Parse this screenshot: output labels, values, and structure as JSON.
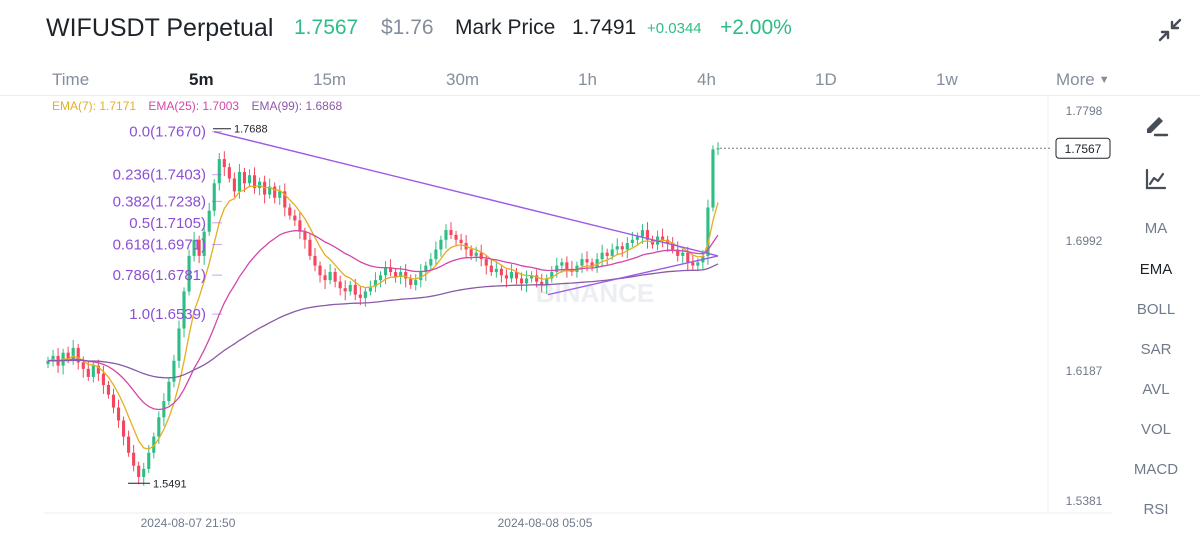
{
  "header": {
    "title": "WIFUSDT Perpetual",
    "last_price": "1.7567",
    "usd_price": "$1.76",
    "mark_price_label": "Mark Price",
    "mark_price": "1.7491",
    "change_abs": "+0.0344",
    "change_pct": "+2.00%",
    "collapse_icon": "collapse-arrows-icon"
  },
  "tabs": [
    {
      "label": "Time",
      "active": false
    },
    {
      "label": "5m",
      "active": true
    },
    {
      "label": "15m",
      "active": false
    },
    {
      "label": "30m",
      "active": false
    },
    {
      "label": "1h",
      "active": false
    },
    {
      "label": "4h",
      "active": false
    },
    {
      "label": "1D",
      "active": false
    },
    {
      "label": "1w",
      "active": false
    },
    {
      "label": "More",
      "active": false
    }
  ],
  "ema_legend": [
    {
      "label": "EMA(7): 1.7171",
      "color": "#e5ae21"
    },
    {
      "label": "EMA(25): 1.7003",
      "color": "#d447a8"
    },
    {
      "label": "EMA(99): 1.6868",
      "color": "#8a5aa8"
    }
  ],
  "colors": {
    "up": "#2ebd85",
    "down": "#f6465d",
    "fib": "#8d4fd6",
    "trendline": "#9b59e8"
  },
  "chart_data": {
    "type": "candlestick",
    "ylim": [
      1.5381,
      1.7798
    ],
    "y_ticks": [
      "1.7798",
      "1.6992",
      "1.6187",
      "1.5381"
    ],
    "x_labels": [
      "2024-08-07 21:50",
      "2024-08-08 05:05"
    ],
    "current_price": "1.7567",
    "high_label": "1.7688",
    "low_label": "1.5491",
    "watermark": "BINANCE",
    "fib_levels": [
      {
        "label": "0.0(1.7670)",
        "value": 1.767
      },
      {
        "label": "0.236(1.7403)",
        "value": 1.7403
      },
      {
        "label": "0.382(1.7238)",
        "value": 1.7238
      },
      {
        "label": "0.5(1.7105)",
        "value": 1.7105
      },
      {
        "label": "0.618(1.6971)",
        "value": 1.6971
      },
      {
        "label": "0.786(1.6781)",
        "value": 1.6781
      },
      {
        "label": "1.0(1.6539)",
        "value": 1.6539
      }
    ],
    "closes": [
      1.625,
      1.628,
      1.622,
      1.63,
      1.626,
      1.633,
      1.624,
      1.62,
      1.615,
      1.622,
      1.617,
      1.61,
      1.604,
      1.596,
      1.588,
      1.578,
      1.568,
      1.56,
      1.553,
      1.558,
      1.568,
      1.578,
      1.59,
      1.6,
      1.612,
      1.625,
      1.645,
      1.668,
      1.69,
      1.7,
      1.69,
      1.705,
      1.718,
      1.735,
      1.75,
      1.745,
      1.738,
      1.73,
      1.742,
      1.735,
      1.74,
      1.732,
      1.736,
      1.728,
      1.733,
      1.726,
      1.73,
      1.72,
      1.715,
      1.712,
      1.705,
      1.7,
      1.69,
      1.684,
      1.678,
      1.675,
      1.68,
      1.674,
      1.67,
      1.668,
      1.672,
      1.666,
      1.664,
      1.668,
      1.671,
      1.675,
      1.678,
      1.683,
      1.68,
      1.677,
      1.68,
      1.676,
      1.672,
      1.675,
      1.68,
      1.684,
      1.688,
      1.694,
      1.7,
      1.706,
      1.703,
      1.7,
      1.698,
      1.694,
      1.69,
      1.692,
      1.688,
      1.684,
      1.68,
      1.682,
      1.678,
      1.676,
      1.68,
      1.676,
      1.673,
      1.676,
      1.678,
      1.674,
      1.672,
      1.676,
      1.68,
      1.684,
      1.686,
      1.682,
      1.68,
      1.684,
      1.688,
      1.686,
      1.683,
      1.688,
      1.692,
      1.69,
      1.694,
      1.696,
      1.694,
      1.698,
      1.7,
      1.702,
      1.706,
      1.7,
      1.697,
      1.702,
      1.7,
      1.698,
      1.694,
      1.69,
      1.692,
      1.686,
      1.684,
      1.686,
      1.69,
      1.72,
      1.756,
      1.7567
    ]
  },
  "sidebar": {
    "draw_icon": "pencil-draw-icon",
    "indicator_icon": "chart-indicator-icon",
    "indicators": [
      {
        "label": "MA",
        "active": false
      },
      {
        "label": "EMA",
        "active": true
      },
      {
        "label": "BOLL",
        "active": false
      },
      {
        "label": "SAR",
        "active": false
      },
      {
        "label": "AVL",
        "active": false
      },
      {
        "label": "VOL",
        "active": false
      },
      {
        "label": "MACD",
        "active": false
      },
      {
        "label": "RSI",
        "active": false
      }
    ]
  }
}
